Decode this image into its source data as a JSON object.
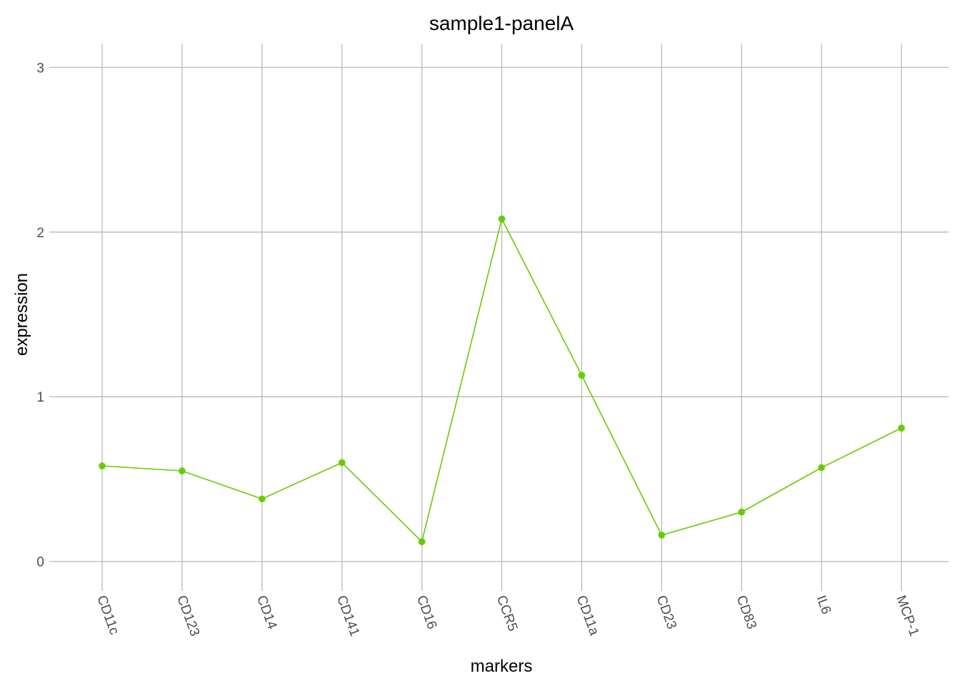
{
  "chart_data": {
    "type": "line",
    "title": "sample1-panelA",
    "xlabel": "markers",
    "ylabel": "expression",
    "categories": [
      "CD11c",
      "CD123",
      "CD14",
      "CD141",
      "CD16",
      "CCR5",
      "CD11a",
      "CD23",
      "CD83",
      "IL6",
      "MCP-1"
    ],
    "series": [
      {
        "values": [
          0.58,
          0.55,
          0.38,
          0.6,
          0.12,
          2.08,
          1.13,
          0.16,
          0.3,
          0.57,
          0.81
        ]
      }
    ],
    "y_ticks": [
      0,
      1,
      2,
      3
    ],
    "ylim": [
      -0.14,
      3.14
    ],
    "grid": true,
    "colors": {
      "series": "#66cc00",
      "grid": "#bebebe",
      "tick_text": "#4d4d4d"
    }
  }
}
